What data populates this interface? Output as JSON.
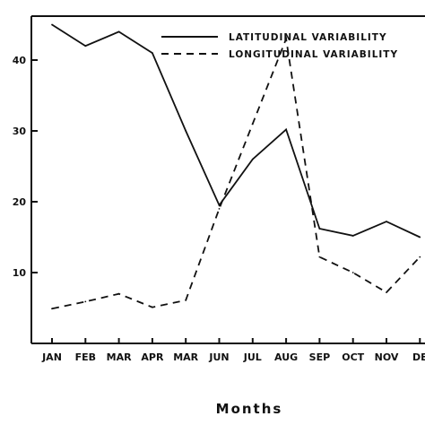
{
  "chart_data": {
    "type": "line",
    "categories": [
      "JAN",
      "FEB",
      "MAR",
      "APR",
      "MAR",
      "JUN",
      "JUL",
      "AUG",
      "SEP",
      "OCT",
      "NOV",
      "DE"
    ],
    "series": [
      {
        "name": "LATITUDINAL VARIABILITY",
        "style": "solid",
        "values": [
          45,
          42,
          44,
          41,
          30,
          19.5,
          26,
          30.2,
          16.2,
          15.2,
          17.2,
          15
        ]
      },
      {
        "name": "LONGITUDINAL VARIABILITY",
        "style": "dashed",
        "values": [
          4.9,
          5.9,
          7,
          5.1,
          6.1,
          19,
          31,
          43,
          12.2,
          10,
          7.2,
          12.2
        ]
      }
    ],
    "xlabel": "Months",
    "ylabel": "",
    "yticks": [
      10,
      20,
      30,
      40
    ],
    "ylim": [
      0,
      48
    ],
    "grid": false,
    "legend": "top-right",
    "line_color": "#111111"
  }
}
